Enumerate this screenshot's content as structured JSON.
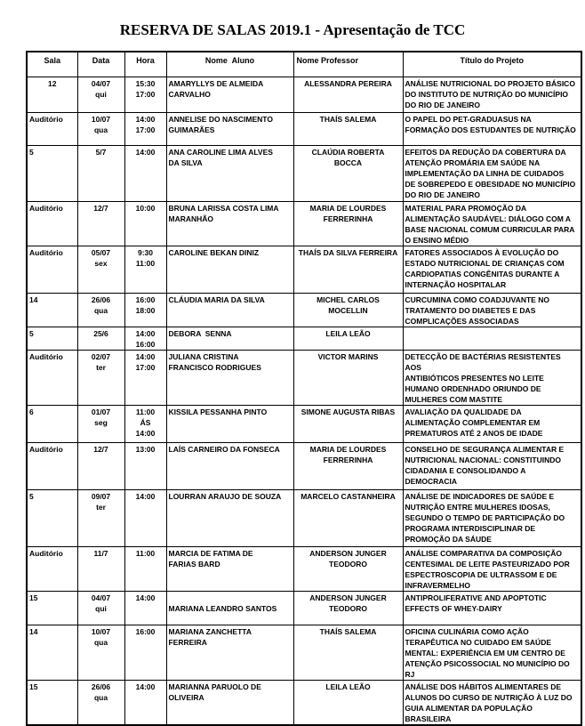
{
  "page_title": "RESERVA DE SALAS 2019.1 - Apresentação de TCC",
  "table": {
    "headers": [
      "Sala",
      "Data",
      "Hora",
      "Nome  Aluno",
      "Nome Professor",
      "Título do Projeto"
    ],
    "rows": [
      {
        "sala": "12",
        "data": "04/07\nqui",
        "hora": "15:30\n17:00",
        "aluno": "AMARYLLYS DE ALMEIDA\nCARVALHO",
        "professor": "ALESSANDRA PEREIRA",
        "titulo": "ANÁLISE NUTRICIONAL DO PROJETO BÁSICO\nDO INSTITUTO DE NUTRIÇÃO DO MUNICÍPIO\nDO RIO DE JANEIRO"
      },
      {
        "sala": "Auditório",
        "data": "10/07\nqua",
        "hora": "14:00\n17:00",
        "aluno": "ANNELISE DO NASCIMENTO\nGUIMARÃES",
        "professor": "THAÍS SALEMA",
        "titulo": "O PAPEL DO PET-GRADUASUS NA\nFORMAÇÃO DOS ESTUDANTES DE NUTRIÇÃO"
      },
      {
        "sala": "5",
        "data": "5/7",
        "hora": "14:00",
        "aluno": "ANA CAROLINE LIMA ALVES\nDA SILVA",
        "professor": "CLAÚDIA ROBERTA\nBOCCA",
        "titulo": "EFEITOS DA REDUÇÃO DA COBERTURA DA\nATENÇÃO PROMÁRIA EM SAÚDE NA\nIMPLEMENTAÇÃO DA LINHA DE CUIDADOS\nDE SOBREPEDO E OBESIDADE NO MUNICÍPIO\nDO RIO DE JANEIRO"
      },
      {
        "sala": "Auditório",
        "data": "12/7",
        "hora": "10:00",
        "aluno": "BRUNA LARISSA COSTA LIMA\nMARANHÃO",
        "professor": "MARIA DE LOURDES\nFERRERINHA",
        "titulo": "MATERIAL PARA PROMOÇÃO DA\nALIMENTAÇÃO SAUDÁVEL: DIÁLOGO COM A\nBASE NACIONAL COMUM CURRICULAR PARA\nO ENSINO MÉDIO"
      },
      {
        "sala": "Auditório",
        "data": "05/07\nsex",
        "hora": "9:30\n11:00",
        "aluno": "CAROLINE BEKAN DINIZ",
        "professor": "THAÍS DA SILVA FERREIRA",
        "titulo": "FATORES ASSOCIADOS À EVOLUÇÃO DO\nESTADO NUTRICIONAL DE CRIANÇAS COM\nCARDIOPATIAS CONGÊNITAS DURANTE A\nINTERNAÇÃO HOSPITALAR"
      },
      {
        "sala": "14",
        "data": "26/06\nqua",
        "hora": "16:00\n18:00",
        "aluno": "CLÁUDIA MARIA DA SILVA",
        "professor": "MICHEL CARLOS\nMOCELLIN",
        "titulo": "CURCUMINA COMO COADJUVANTE NO\nTRATAMENTO DO DIABETES E DAS\nCOMPLICAÇÕES ASSOCIADAS"
      },
      {
        "sala": "5",
        "data": "25/6",
        "hora": "14:00\n16:00",
        "aluno": "DEBORA  SENNA",
        "professor": "LEILA LEÃO",
        "titulo": ""
      },
      {
        "sala": "Auditório",
        "data": "02/07\nter",
        "hora": "14:00\n17:00",
        "aluno": "JULIANA CRISTINA\nFRANCISCO RODRIGUES",
        "professor": "VICTOR MARINS",
        "titulo": "DETECÇÃO DE BACTÉRIAS RESISTENTES AOS\nANTIBIÓTICOS PRESENTES NO LEITE\nHUMANO ORDENHADO ORIUNDO DE\nMULHERES COM MASTITE"
      },
      {
        "sala": "6",
        "data": "01/07\nseg",
        "hora": "11:00\nÁS\n14:00",
        "aluno": "KISSILA PESSANHA PINTO",
        "professor": "SIMONE AUGUSTA RIBAS",
        "titulo": "AVALIAÇÃO DA QUALIDADE DA\nALIMENTAÇÃO COMPLEMENTAR EM\nPREMATUROS ATÉ 2 ANOS DE IDADE"
      },
      {
        "sala": "Auditório",
        "data": "12/7",
        "hora": "13:00",
        "aluno": "LAÍS CARNEIRO DA FONSECA",
        "professor": "MARIA DE LOURDES\nFERRERINHA",
        "titulo": "CONSELHO DE SEGURANÇA ALIMENTAR E\nNUTRICIONAL NACIONAL: CONSTITUINDO\nCIDADANIA E CONSOLIDANDO A\nDEMOCRACIA"
      },
      {
        "sala": "5",
        "data": "09/07\nter",
        "hora": "14:00",
        "aluno": "LOURRAN ARAUJO DE SOUZA",
        "professor": "MARCELO CASTANHEIRA",
        "titulo": "ANÁLISE DE INDICADORES DE SAÚDE E\nNUTRIÇÃO ENTRE MULHERES IDOSAS,\nSEGUNDO O TEMPO DE PARTICIPAÇÃO DO\nPROGRAMA INTERDISCIPLINAR DE\nPROMOÇÃO DA SÁUDE"
      },
      {
        "sala": "Auditório",
        "data": "11/7",
        "hora": "11:00",
        "aluno": "MARCIA DE FATIMA DE\nFARIAS BARD",
        "professor": "ANDERSON JUNGER\nTEODORO",
        "titulo": "ANÁLISE COMPARATIVA DA COMPOSIÇÃO\nCENTESIMAL DE LEITE PASTEURIZADO POR\nESPECTROSCOPIA DE ULTRASSOM E DE\nINFRAVERMELHO"
      },
      {
        "sala": "15",
        "data": "04/07\nqui",
        "hora": "14:00",
        "aluno": "\nMARIANA LEANDRO SANTOS",
        "professor": "ANDERSON JUNGER\nTEODORO",
        "titulo": "ANTIPROLIFERATIVE AND APOPTOTIC\nEFFECTS OF WHEY-DAIRY"
      },
      {
        "sala": "14",
        "data": "10/07\nqua",
        "hora": "16:00",
        "aluno": "MARIANA ZANCHETTA\nFERREIRA",
        "professor": "THAÍS SALEMA",
        "titulo": "OFICINA CULINÁRIA COMO AÇÃO\nTERAPÊUTICA NO CUIDADO EM SAÚDE\nMENTAL: EXPERIÊNCIA EM UM CENTRO DE\nATENÇÃO PSICOSSOCIAL NO MUNICÍPIO DO\nRJ"
      },
      {
        "sala": "15",
        "data": "26/06\nqua",
        "hora": "14:00",
        "aluno": "MARIANNA PARUOLO DE\nOLIVEIRA",
        "professor": "LEILA LEÃO",
        "titulo": "ANÁLISE DOS HÁBITOS ALIMENTARES DE\nALUNOS DO CURSO DE NUTRIÇÃO À LUZ DO\nGUIA ALIMENTAR DA POPULAÇÃO\nBRASILEIRA"
      }
    ]
  }
}
